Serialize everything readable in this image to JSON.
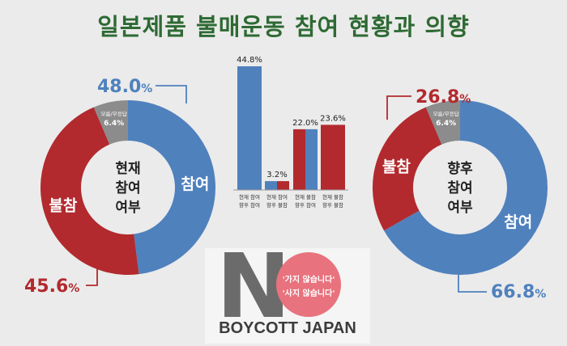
{
  "title": "일본제품 불매운동 참여 현황과 의향",
  "chart_data": [
    {
      "type": "pie",
      "center_label": [
        "현재",
        "참여",
        "여부"
      ],
      "slices": [
        {
          "name": "참여",
          "value": 48.0,
          "label": "48.0",
          "color": "#4f81bd"
        },
        {
          "name": "불참",
          "value": 45.6,
          "label": "45.6",
          "color": "#b22a2e"
        },
        {
          "name": "모름/무응답",
          "value": 6.4,
          "label": "6.4%",
          "color": "#8c8c8c"
        }
      ]
    },
    {
      "type": "bar",
      "categories": [
        [
          "현재 참여",
          "향후 참여"
        ],
        [
          "현재 참여",
          "향후 불참"
        ],
        [
          "현재 불참",
          "향후 참여"
        ],
        [
          "현재 불참",
          "향후 불참"
        ]
      ],
      "values": [
        44.8,
        3.2,
        22.0,
        23.6
      ],
      "labels": [
        "44.8%",
        "3.2%",
        "22.0%",
        "23.6%"
      ],
      "colors": {
        "current_participate": "#4f81bd",
        "current_not": "#b22a2e"
      }
    },
    {
      "type": "pie",
      "center_label": [
        "향후",
        "참여",
        "여부"
      ],
      "slices": [
        {
          "name": "참여",
          "value": 66.8,
          "label": "66.8",
          "color": "#4f81bd"
        },
        {
          "name": "불참",
          "value": 26.8,
          "label": "26.8",
          "color": "#b22a2e"
        },
        {
          "name": "모름/무응답",
          "value": 6.4,
          "label": "6.4%",
          "color": "#8c8c8c"
        }
      ]
    }
  ],
  "logo": {
    "letter": "N",
    "line1": "'가지 않습니다'",
    "line2": "'사지 않습니다'",
    "text": "BOYCOTT JAPAN"
  },
  "percent_sign": "%"
}
